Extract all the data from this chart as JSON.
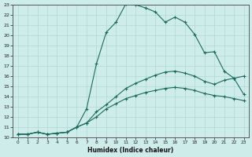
{
  "title": "",
  "xlabel": "Humidex (Indice chaleur)",
  "xlim": [
    -0.5,
    23.5
  ],
  "ylim": [
    10,
    23
  ],
  "xticks": [
    0,
    1,
    2,
    3,
    4,
    5,
    6,
    7,
    8,
    9,
    10,
    11,
    12,
    13,
    14,
    15,
    16,
    17,
    18,
    19,
    20,
    21,
    22,
    23
  ],
  "yticks": [
    10,
    11,
    12,
    13,
    14,
    15,
    16,
    17,
    18,
    19,
    20,
    21,
    22,
    23
  ],
  "bg_color": "#ceecea",
  "line_color": "#1a6b5e",
  "grid_color": "#aed8d4",
  "series1_x": [
    0,
    1,
    2,
    3,
    4,
    5,
    6,
    7,
    8,
    9,
    10,
    11,
    12,
    13,
    14,
    15,
    16,
    17,
    18,
    19,
    20,
    21,
    22,
    23
  ],
  "series1_y": [
    10.3,
    10.3,
    10.5,
    10.3,
    10.4,
    10.5,
    11.0,
    12.8,
    17.2,
    20.3,
    21.3,
    23.1,
    23.0,
    22.7,
    22.3,
    21.3,
    21.8,
    21.3,
    20.1,
    18.3,
    18.4,
    16.5,
    15.8,
    16.0
  ],
  "series2_x": [
    0,
    1,
    2,
    3,
    4,
    5,
    6,
    7,
    8,
    9,
    10,
    11,
    12,
    13,
    14,
    15,
    16,
    17,
    18,
    19,
    20,
    21,
    22,
    23
  ],
  "series2_y": [
    10.3,
    10.3,
    10.5,
    10.3,
    10.4,
    10.5,
    11.0,
    11.4,
    12.5,
    13.2,
    14.0,
    14.8,
    15.3,
    15.7,
    16.1,
    16.4,
    16.5,
    16.3,
    16.0,
    15.5,
    15.2,
    15.6,
    15.8,
    14.2
  ],
  "series3_x": [
    0,
    1,
    2,
    3,
    4,
    5,
    6,
    7,
    8,
    9,
    10,
    11,
    12,
    13,
    14,
    15,
    16,
    17,
    18,
    19,
    20,
    21,
    22,
    23
  ],
  "series3_y": [
    10.3,
    10.3,
    10.5,
    10.3,
    10.4,
    10.5,
    11.0,
    11.4,
    12.0,
    12.8,
    13.3,
    13.8,
    14.1,
    14.4,
    14.6,
    14.8,
    14.9,
    14.8,
    14.6,
    14.3,
    14.1,
    14.0,
    13.8,
    13.6
  ]
}
